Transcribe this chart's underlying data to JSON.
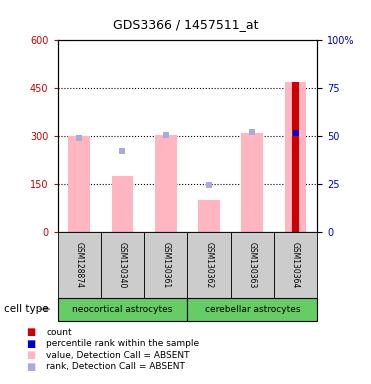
{
  "title": "GDS3366 / 1457511_at",
  "samples": [
    "GSM128874",
    "GSM130340",
    "GSM130361",
    "GSM130362",
    "GSM130363",
    "GSM130364"
  ],
  "values_absent": [
    300,
    175,
    305,
    100,
    310,
    470
  ],
  "ranks_absent": [
    295,
    255,
    305,
    148,
    312,
    null
  ],
  "count_value": 470,
  "percentile_rank_val": 51.7,
  "has_count": [
    false,
    false,
    false,
    false,
    false,
    true
  ],
  "has_percentile": [
    false,
    false,
    false,
    false,
    false,
    true
  ],
  "ylim_left": [
    0,
    600
  ],
  "ylim_right": [
    0,
    100
  ],
  "yticks_left": [
    0,
    150,
    300,
    450,
    600
  ],
  "yticks_right": [
    0,
    25,
    50,
    75,
    100
  ],
  "ytick_labels_right": [
    "0",
    "25",
    "50",
    "75",
    "100%"
  ],
  "ylabel_left_color": "#cc0000",
  "ylabel_right_color": "#0000cc",
  "bar_color_absent": "#ffb6c1",
  "rank_color_absent": "#aaaadd",
  "count_color": "#cc0000",
  "percentile_color": "#0000cc",
  "background_color": "#ffffff",
  "sample_bg_color": "#cccccc",
  "cell_type_bg_color": "#66cc66",
  "neocortical_label": "neocortical astrocytes",
  "cerebellar_label": "cerebellar astrocytes",
  "cell_type_text": "cell type",
  "legend_items": [
    {
      "color": "#cc0000",
      "label": "count"
    },
    {
      "color": "#0000cc",
      "label": "percentile rank within the sample"
    },
    {
      "color": "#ffb6c1",
      "label": "value, Detection Call = ABSENT"
    },
    {
      "color": "#aaaadd",
      "label": "rank, Detection Call = ABSENT"
    }
  ],
  "hgrid_values": [
    150,
    300,
    450
  ],
  "bar_width": 0.5,
  "count_bar_width": 0.18
}
